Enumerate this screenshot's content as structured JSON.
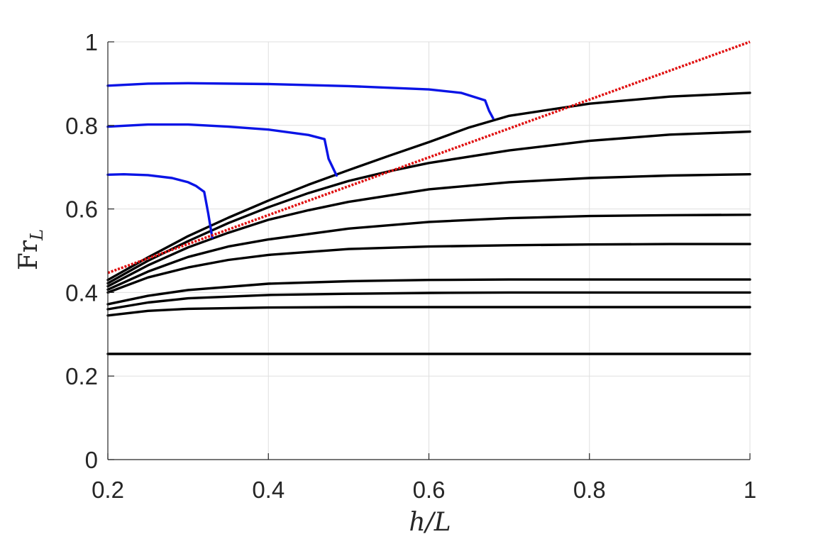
{
  "chart_data": {
    "type": "line",
    "xlabel": "h/L",
    "ylabel": {
      "main": "Fr",
      "sub": "L"
    },
    "xlim": [
      0.2,
      1.0
    ],
    "ylim": [
      0,
      1.0
    ],
    "xticks": [
      0.2,
      0.4,
      0.6,
      0.8,
      1.0
    ],
    "yticks": [
      0,
      0.2,
      0.4,
      0.6,
      0.8,
      1.0
    ],
    "xtick_labels": [
      "0.2",
      "0.4",
      "0.6",
      "0.8",
      "1"
    ],
    "ytick_labels": [
      "0",
      "0.2",
      "0.4",
      "0.6",
      "0.8",
      "1"
    ],
    "grid": true,
    "colors": {
      "black": "#000000",
      "blue": "#0a14e6",
      "red": "#e01010"
    },
    "series": [
      {
        "color": "black",
        "style": "solid",
        "x": [
          0.2,
          0.3,
          0.4,
          0.5,
          0.6,
          0.7,
          0.8,
          0.9,
          1.0
        ],
        "y": [
          0.253,
          0.253,
          0.253,
          0.253,
          0.253,
          0.253,
          0.253,
          0.253,
          0.253
        ]
      },
      {
        "color": "black",
        "style": "solid",
        "x": [
          0.2,
          0.25,
          0.3,
          0.4,
          0.5,
          0.6,
          0.7,
          0.8,
          0.9,
          1.0
        ],
        "y": [
          0.345,
          0.356,
          0.361,
          0.364,
          0.365,
          0.365,
          0.365,
          0.365,
          0.365,
          0.365
        ]
      },
      {
        "color": "black",
        "style": "solid",
        "x": [
          0.2,
          0.25,
          0.3,
          0.4,
          0.5,
          0.6,
          0.7,
          0.8,
          0.9,
          1.0
        ],
        "y": [
          0.36,
          0.376,
          0.386,
          0.394,
          0.397,
          0.399,
          0.4,
          0.4,
          0.4,
          0.4
        ]
      },
      {
        "color": "black",
        "style": "solid",
        "x": [
          0.2,
          0.25,
          0.3,
          0.4,
          0.5,
          0.6,
          0.7,
          0.8,
          0.9,
          1.0
        ],
        "y": [
          0.372,
          0.392,
          0.406,
          0.421,
          0.427,
          0.43,
          0.431,
          0.431,
          0.431,
          0.431
        ]
      },
      {
        "color": "black",
        "style": "solid",
        "x": [
          0.2,
          0.25,
          0.3,
          0.35,
          0.4,
          0.5,
          0.6,
          0.7,
          0.8,
          0.9,
          1.0
        ],
        "y": [
          0.4,
          0.436,
          0.46,
          0.478,
          0.49,
          0.504,
          0.51,
          0.513,
          0.515,
          0.516,
          0.516
        ]
      },
      {
        "color": "black",
        "style": "solid",
        "x": [
          0.2,
          0.25,
          0.3,
          0.35,
          0.4,
          0.5,
          0.6,
          0.7,
          0.8,
          0.9,
          1.0
        ],
        "y": [
          0.407,
          0.45,
          0.485,
          0.51,
          0.527,
          0.553,
          0.569,
          0.578,
          0.583,
          0.585,
          0.586
        ]
      },
      {
        "color": "black",
        "style": "solid",
        "x": [
          0.2,
          0.25,
          0.3,
          0.35,
          0.4,
          0.45,
          0.5,
          0.6,
          0.7,
          0.8,
          0.9,
          1.0
        ],
        "y": [
          0.415,
          0.465,
          0.508,
          0.543,
          0.574,
          0.597,
          0.617,
          0.647,
          0.664,
          0.674,
          0.68,
          0.683
        ]
      },
      {
        "color": "black",
        "style": "solid",
        "x": [
          0.2,
          0.25,
          0.3,
          0.35,
          0.4,
          0.45,
          0.5,
          0.55,
          0.6,
          0.7,
          0.8,
          0.9,
          1.0
        ],
        "y": [
          0.422,
          0.476,
          0.523,
          0.566,
          0.604,
          0.638,
          0.667,
          0.69,
          0.71,
          0.74,
          0.763,
          0.778,
          0.785
        ]
      },
      {
        "color": "black",
        "style": "solid",
        "x": [
          0.2,
          0.25,
          0.3,
          0.35,
          0.4,
          0.45,
          0.5,
          0.55,
          0.6,
          0.65,
          0.7,
          0.8,
          0.9,
          1.0
        ],
        "y": [
          0.43,
          0.484,
          0.535,
          0.579,
          0.62,
          0.658,
          0.693,
          0.727,
          0.76,
          0.795,
          0.823,
          0.852,
          0.869,
          0.878
        ]
      },
      {
        "color": "blue",
        "style": "solid",
        "x": [
          0.2,
          0.22,
          0.25,
          0.28,
          0.3,
          0.31,
          0.32,
          0.325,
          0.33
        ],
        "y": [
          0.682,
          0.683,
          0.681,
          0.674,
          0.664,
          0.655,
          0.641,
          0.59,
          0.532
        ]
      },
      {
        "color": "blue",
        "style": "solid",
        "x": [
          0.2,
          0.25,
          0.3,
          0.35,
          0.4,
          0.45,
          0.47,
          0.475,
          0.485
        ],
        "y": [
          0.797,
          0.802,
          0.802,
          0.797,
          0.79,
          0.777,
          0.767,
          0.72,
          0.68
        ]
      },
      {
        "color": "blue",
        "style": "solid",
        "x": [
          0.2,
          0.25,
          0.3,
          0.4,
          0.5,
          0.6,
          0.64,
          0.67,
          0.675,
          0.68
        ],
        "y": [
          0.895,
          0.9,
          0.901,
          0.899,
          0.894,
          0.886,
          0.878,
          0.86,
          0.835,
          0.817
        ]
      },
      {
        "color": "red",
        "style": "dotted",
        "x": [
          0.2,
          1.0
        ],
        "y": [
          0.447,
          1.0
        ]
      }
    ]
  }
}
